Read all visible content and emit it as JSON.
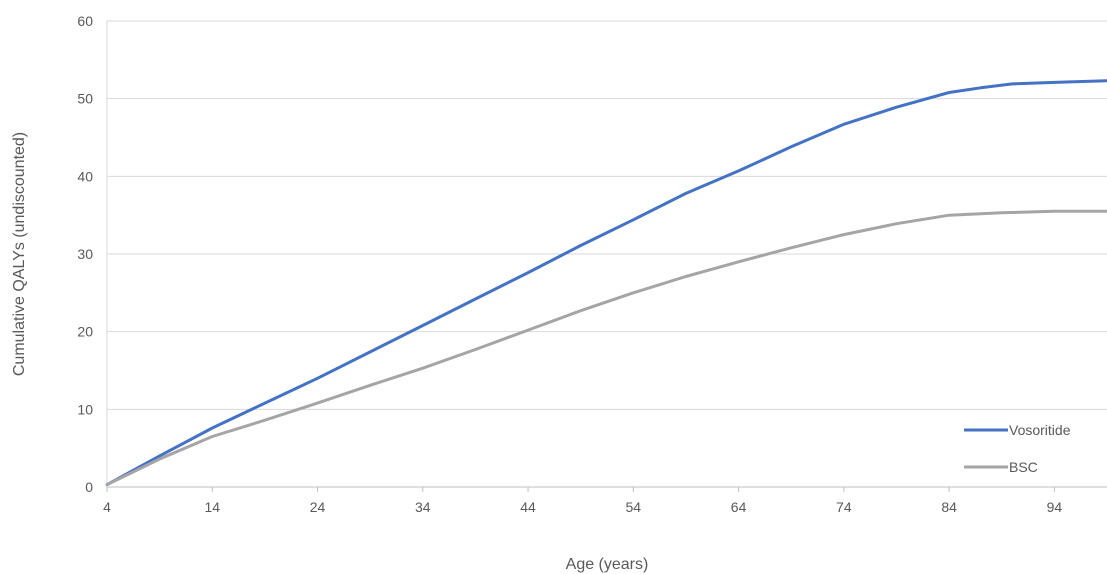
{
  "chart_data": {
    "type": "line",
    "title": "",
    "xlabel": "Age (years)",
    "ylabel": "Cumulative QALYs (undiscounted)",
    "xlim": [
      4,
      99
    ],
    "ylim": [
      0,
      60
    ],
    "x_ticks": [
      4,
      14,
      24,
      34,
      44,
      54,
      64,
      74,
      84,
      94
    ],
    "y_ticks": [
      0,
      10,
      20,
      30,
      40,
      50,
      60
    ],
    "grid": "horizontal",
    "legend_position": "bottom-right",
    "series": [
      {
        "name": "Vosoritide",
        "color": "#4472C4",
        "x": [
          4,
          9,
          14,
          19,
          24,
          29,
          34,
          39,
          44,
          49,
          54,
          59,
          64,
          69,
          74,
          79,
          84,
          87,
          90,
          94,
          99
        ],
        "y": [
          0.3,
          4.0,
          7.6,
          10.8,
          14.0,
          17.4,
          20.8,
          24.2,
          27.6,
          31.1,
          34.4,
          37.8,
          40.7,
          43.8,
          46.7,
          48.9,
          50.8,
          51.4,
          51.9,
          52.1,
          52.3
        ]
      },
      {
        "name": "BSC",
        "color": "#A5A5A5",
        "x": [
          4,
          9,
          14,
          19,
          24,
          29,
          34,
          39,
          44,
          49,
          54,
          59,
          64,
          69,
          74,
          79,
          84,
          89,
          94,
          99
        ],
        "y": [
          0.3,
          3.6,
          6.5,
          8.6,
          10.8,
          13.1,
          15.3,
          17.7,
          20.2,
          22.7,
          25.0,
          27.1,
          29.0,
          30.8,
          32.5,
          33.9,
          35.0,
          35.3,
          35.5,
          35.5
        ]
      }
    ]
  }
}
